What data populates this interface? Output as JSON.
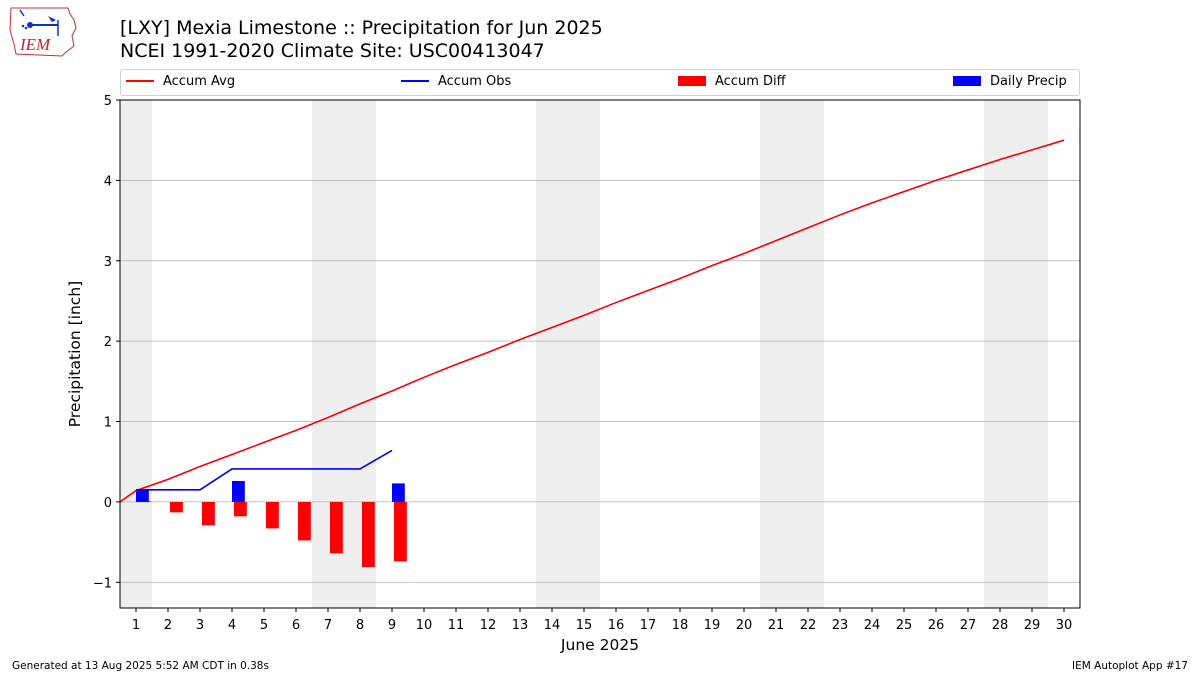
{
  "header": {
    "title_line1": "[LXY] Mexia Limestone :: Precipitation for Jun 2025",
    "title_line2": "NCEI 1991-2020 Climate Site: USC00413047"
  },
  "logo": {
    "text": "IEM",
    "icon": "iem-iowa-logo-icon"
  },
  "legend": {
    "accum_avg": "Accum Avg",
    "accum_obs": "Accum Obs",
    "accum_diff": "Accum Diff",
    "daily_precip": "Daily Precip"
  },
  "colors": {
    "accum_avg": "#ff0000",
    "accum_obs": "#0000ff",
    "accum_diff": "#ff0000",
    "daily_precip": "#0000ff",
    "weekend_shade": "#eeeeee",
    "grid": "#b0b0b0"
  },
  "footer": {
    "generated": "Generated at 13 Aug 2025 5:52 AM CDT in 0.38s",
    "app": "IEM Autoplot App #17"
  },
  "chart_data": {
    "type": "bar",
    "xlabel": "June 2025",
    "ylabel": "Precipitation [inch]",
    "ylim": [
      -1.32,
      5.0
    ],
    "xlim": [
      0.5,
      30.5
    ],
    "yticks": [
      -1,
      0,
      1,
      2,
      3,
      4,
      5
    ],
    "ytick_labels": [
      "−1",
      "0",
      "1",
      "2",
      "3",
      "4",
      "5"
    ],
    "days": [
      1,
      2,
      3,
      4,
      5,
      6,
      7,
      8,
      9,
      10,
      11,
      12,
      13,
      14,
      15,
      16,
      17,
      18,
      19,
      20,
      21,
      22,
      23,
      24,
      25,
      26,
      27,
      28,
      29,
      30
    ],
    "grid": "horizontal",
    "legend_position": "top",
    "weekend_days": [
      1,
      7,
      8,
      14,
      15,
      21,
      22,
      28,
      29
    ],
    "series": [
      {
        "name": "Accum Avg",
        "kind": "line",
        "x": [
          0.5,
          1,
          2,
          3,
          4,
          5,
          6,
          7,
          8,
          9,
          10,
          11,
          12,
          13,
          14,
          15,
          16,
          17,
          18,
          19,
          20,
          21,
          22,
          23,
          24,
          25,
          26,
          27,
          28,
          29,
          30
        ],
        "values": [
          0.0,
          0.14,
          0.28,
          0.44,
          0.59,
          0.74,
          0.89,
          1.05,
          1.22,
          1.38,
          1.55,
          1.71,
          1.86,
          2.02,
          2.17,
          2.32,
          2.48,
          2.63,
          2.78,
          2.94,
          3.09,
          3.25,
          3.41,
          3.57,
          3.72,
          3.86,
          4.0,
          4.13,
          4.26,
          4.38,
          4.5
        ]
      },
      {
        "name": "Accum Obs",
        "kind": "line",
        "x": [
          1,
          2,
          3,
          4,
          5,
          6,
          7,
          8,
          9
        ],
        "values": [
          0.15,
          0.15,
          0.15,
          0.41,
          0.41,
          0.41,
          0.41,
          0.41,
          0.64
        ]
      },
      {
        "name": "Accum Diff",
        "kind": "bar",
        "x": [
          1,
          2,
          3,
          4,
          5,
          6,
          7,
          8,
          9
        ],
        "values": [
          0.01,
          -0.13,
          -0.29,
          -0.18,
          -0.33,
          -0.48,
          -0.64,
          -0.81,
          -0.74
        ]
      },
      {
        "name": "Daily Precip",
        "kind": "bar",
        "x": [
          1,
          4,
          9
        ],
        "values": [
          0.15,
          0.26,
          0.23
        ]
      }
    ]
  }
}
